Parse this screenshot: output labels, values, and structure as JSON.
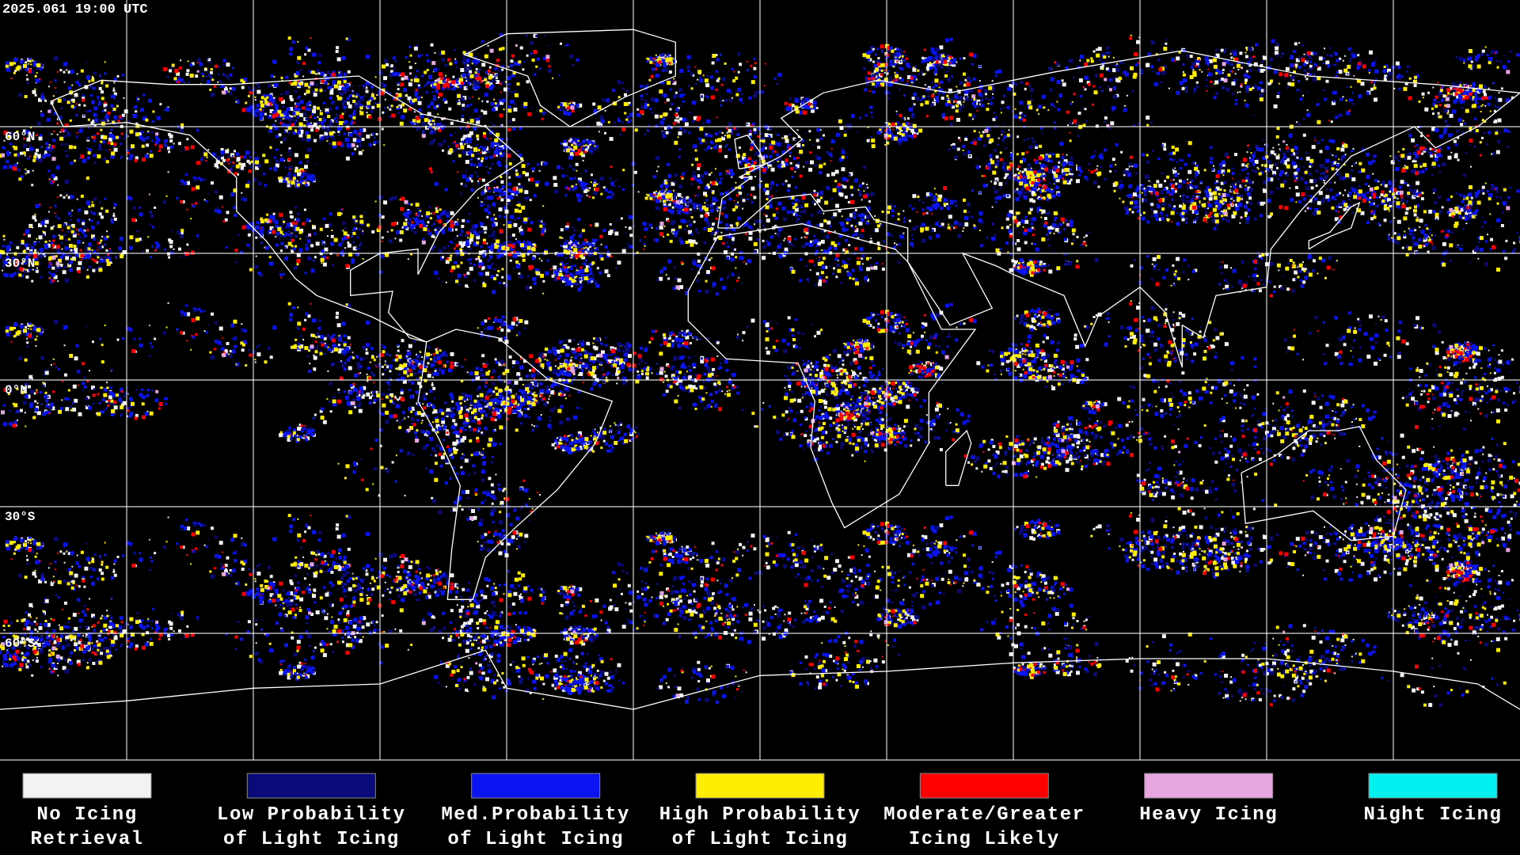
{
  "map": {
    "timestamp": "2025.061 19:00 UTC",
    "lon_range": [
      -180,
      180
    ],
    "lat_range": [
      -90,
      90
    ],
    "meridians": [
      -150,
      -120,
      -90,
      -60,
      -30,
      0,
      30,
      60,
      90,
      120,
      150
    ],
    "parallels": [
      {
        "value": 60,
        "label": "60°N"
      },
      {
        "value": 30,
        "label": "30°N"
      },
      {
        "value": 0,
        "label": "0°N"
      },
      {
        "value": -30,
        "label": "30°S"
      },
      {
        "value": -60,
        "label": "60°S"
      }
    ]
  },
  "legend": [
    {
      "color": "#f2f2f2",
      "label": [
        "No Icing",
        "Retrieval"
      ]
    },
    {
      "color": "#0a0a7a",
      "label": [
        "Low Probability",
        "of Light Icing"
      ]
    },
    {
      "color": "#0a14f0",
      "label": [
        "Med.Probability",
        "of Light Icing"
      ]
    },
    {
      "color": "#ffee00",
      "label": [
        "High Probability",
        "of Light Icing"
      ]
    },
    {
      "color": "#ff0000",
      "label": [
        "Moderate/Greater",
        "Icing Likely"
      ]
    },
    {
      "color": "#e8a6e0",
      "label": [
        "Heavy Icing"
      ]
    },
    {
      "color": "#00f0f0",
      "label": [
        "Night Icing"
      ]
    }
  ]
}
